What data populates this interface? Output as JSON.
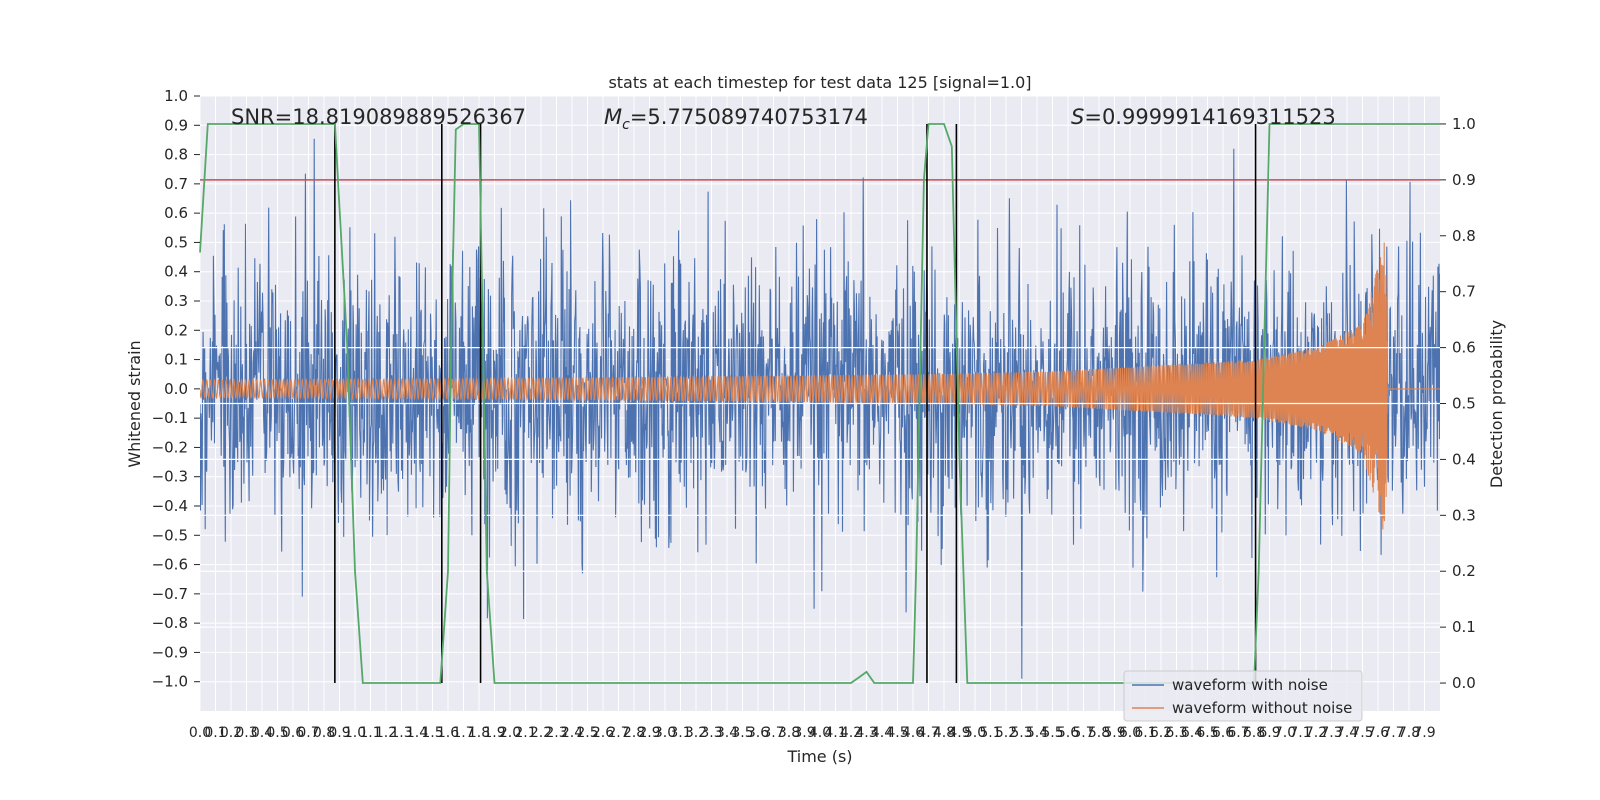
{
  "chart_data": {
    "type": "line",
    "title": "stats at each timestep for test data 125 [signal=1.0]",
    "xlabel": "Time (s)",
    "ylabel_left": "Whitened strain",
    "ylabel_right": "Detection probability",
    "xlim": [
      0.0,
      8.0
    ],
    "ylim_left": [
      -1.1,
      1.0
    ],
    "ylim_right": [
      -0.05,
      1.05
    ],
    "x_ticks": [
      "0.0",
      "0.1",
      "0.2",
      "0.3",
      "0.4",
      "0.5",
      "0.6",
      "0.7",
      "0.8",
      "0.9",
      "1.0",
      "1.1",
      "1.2",
      "1.3",
      "1.4",
      "1.5",
      "1.6",
      "1.7",
      "1.8",
      "1.9",
      "2.0",
      "2.1",
      "2.2",
      "2.3",
      "2.4",
      "2.5",
      "2.6",
      "2.7",
      "2.8",
      "2.9",
      "3.0",
      "3.1",
      "3.2",
      "3.3",
      "3.4",
      "3.5",
      "3.6",
      "3.7",
      "3.8",
      "3.9",
      "4.0",
      "4.1",
      "4.2",
      "4.3",
      "4.4",
      "4.5",
      "4.6",
      "4.7",
      "4.8",
      "4.9",
      "5.0",
      "5.1",
      "5.2",
      "5.3",
      "5.4",
      "5.5",
      "5.6",
      "5.7",
      "5.8",
      "5.9",
      "6.0",
      "6.1",
      "6.2",
      "6.3",
      "6.4",
      "6.5",
      "6.6",
      "6.7",
      "6.8",
      "6.9",
      "7.0",
      "7.1",
      "7.2",
      "7.3",
      "7.4",
      "7.5",
      "7.6",
      "7.7",
      "7.8",
      "7.9"
    ],
    "y_ticks_left": [
      "1.0",
      "0.9",
      "0.8",
      "0.7",
      "0.6",
      "0.5",
      "0.4",
      "0.3",
      "0.2",
      "0.1",
      "0.0",
      "−0.1",
      "−0.2",
      "−0.3",
      "−0.4",
      "−0.5",
      "−0.6",
      "−0.7",
      "−0.8",
      "−0.9",
      "−1.0"
    ],
    "y_ticks_right": [
      "1.0",
      "0.9",
      "0.8",
      "0.7",
      "0.6",
      "0.5",
      "0.4",
      "0.3",
      "0.2",
      "0.1",
      "0.0"
    ],
    "annotations": {
      "snr": "SNR=18.819089889526367",
      "mc": "=5.775089740753174",
      "mc_symbol": "M",
      "mc_subscript": "c",
      "s": "=0.9999914169311523",
      "s_symbol": "S"
    },
    "threshold_right": 0.9,
    "detection_probability": {
      "name": "Detection probability",
      "x": [
        0.0,
        0.05,
        0.1,
        0.2,
        0.5,
        0.87,
        0.9,
        0.95,
        1.0,
        1.05,
        1.1,
        1.2,
        1.4,
        1.5,
        1.55,
        1.6,
        1.62,
        1.65,
        1.7,
        1.8,
        1.82,
        1.85,
        1.9,
        2.0,
        3.0,
        4.0,
        4.2,
        4.25,
        4.3,
        4.35,
        4.4,
        4.5,
        4.6,
        4.62,
        4.67,
        4.7,
        4.8,
        4.85,
        4.9,
        4.95,
        5.0,
        5.5,
        6.0,
        6.5,
        6.75,
        6.8,
        6.83,
        6.9,
        7.0,
        7.5,
        8.0
      ],
      "y": [
        0.77,
        1.0,
        1.0,
        1.0,
        1.0,
        1.0,
        0.85,
        0.6,
        0.2,
        0.0,
        0.0,
        0.0,
        0.0,
        0.0,
        0.0,
        0.2,
        0.6,
        0.99,
        1.0,
        1.0,
        0.7,
        0.2,
        0.0,
        0.0,
        0.0,
        0.0,
        0.0,
        0.01,
        0.02,
        0.0,
        0.0,
        0.0,
        0.0,
        0.2,
        0.9,
        1.0,
        1.0,
        0.96,
        0.4,
        0.0,
        0.0,
        0.0,
        0.0,
        0.0,
        0.0,
        0.0,
        0.2,
        1.0,
        1.0,
        1.0,
        1.0
      ]
    },
    "detection_boundaries_s": [
      0.87,
      1.56,
      1.81,
      4.69,
      4.88,
      6.81
    ],
    "series": [
      {
        "name": "waveform with noise",
        "description": "Gaussian-like noise, mostly within ±0.5, peaks to about ±0.9",
        "envelope_typical": 0.5,
        "envelope_peak": 0.9
      },
      {
        "name": "waveform without noise",
        "description": "chirp signal; amplitude ~0.03 at t=0, ~0.05 at t=4.7, ~0.1 at t=6.8, peaks ~0.52 at t≈7.65, then flat 0",
        "amplitude_points": {
          "x": [
            0.0,
            2.0,
            4.7,
            5.5,
            6.5,
            6.8,
            7.2,
            7.5,
            7.65,
            7.66,
            8.0
          ],
          "y": [
            0.03,
            0.035,
            0.05,
            0.06,
            0.09,
            0.1,
            0.14,
            0.22,
            0.52,
            0.0,
            0.0
          ]
        }
      }
    ],
    "legend": {
      "placement": "lower right",
      "entries": [
        "waveform with noise",
        "waveform without noise"
      ]
    },
    "grid": true,
    "colors": {
      "noise": "#4c72b0",
      "clean": "#dd8452",
      "probability": "#55a868",
      "threshold": "#c44e52",
      "boundary": "#000000",
      "background": "#eaeaf2",
      "grid": "#ffffff"
    }
  }
}
